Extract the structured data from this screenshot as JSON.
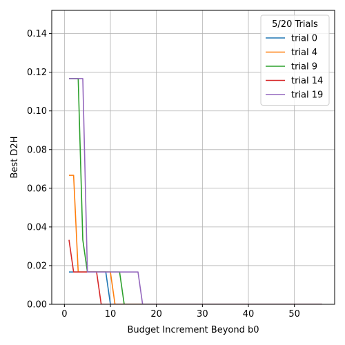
{
  "chart_data": {
    "type": "line",
    "xlabel": "Budget Increment Beyond b0",
    "ylabel": "Best D2H",
    "xlim": [
      -2.75,
      58.75
    ],
    "ylim": [
      0.0,
      0.152
    ],
    "x_ticks": [
      0,
      10,
      20,
      30,
      40,
      50
    ],
    "y_ticks": [
      0.0,
      0.02,
      0.04,
      0.06,
      0.08,
      0.1,
      0.12,
      0.14
    ],
    "x_tick_labels": [
      "0",
      "10",
      "20",
      "30",
      "40",
      "50"
    ],
    "y_tick_labels": [
      "0.00",
      "0.02",
      "0.04",
      "0.06",
      "0.08",
      "0.10",
      "0.12",
      "0.14"
    ],
    "grid": true,
    "legend": {
      "title": "5/20 Trials",
      "placement": "top-right"
    },
    "series": [
      {
        "name": "trial 0",
        "color": "#1f77b4",
        "points": [
          [
            1,
            0.0167
          ],
          [
            9,
            0.0167
          ],
          [
            10,
            0.0
          ],
          [
            56,
            0.0
          ]
        ]
      },
      {
        "name": "trial 4",
        "color": "#ff7f0e",
        "points": [
          [
            1,
            0.0667
          ],
          [
            2,
            0.0667
          ],
          [
            3,
            0.0167
          ],
          [
            10,
            0.0167
          ],
          [
            11,
            0.0
          ],
          [
            56,
            0.0
          ]
        ]
      },
      {
        "name": "trial 9",
        "color": "#2ca02c",
        "points": [
          [
            1,
            0.1167
          ],
          [
            3,
            0.1167
          ],
          [
            4,
            0.0333
          ],
          [
            5,
            0.0167
          ],
          [
            12,
            0.0167
          ],
          [
            13,
            0.0
          ],
          [
            56,
            0.0
          ]
        ]
      },
      {
        "name": "trial 14",
        "color": "#d62728",
        "points": [
          [
            1,
            0.0333
          ],
          [
            2,
            0.0167
          ],
          [
            7,
            0.0167
          ],
          [
            8,
            0.0
          ],
          [
            56,
            0.0
          ]
        ]
      },
      {
        "name": "trial 19",
        "color": "#9467bd",
        "points": [
          [
            1,
            0.1167
          ],
          [
            4,
            0.1167
          ],
          [
            5,
            0.0167
          ],
          [
            16,
            0.0167
          ],
          [
            17,
            0.0
          ],
          [
            56,
            0.0
          ]
        ]
      }
    ]
  }
}
